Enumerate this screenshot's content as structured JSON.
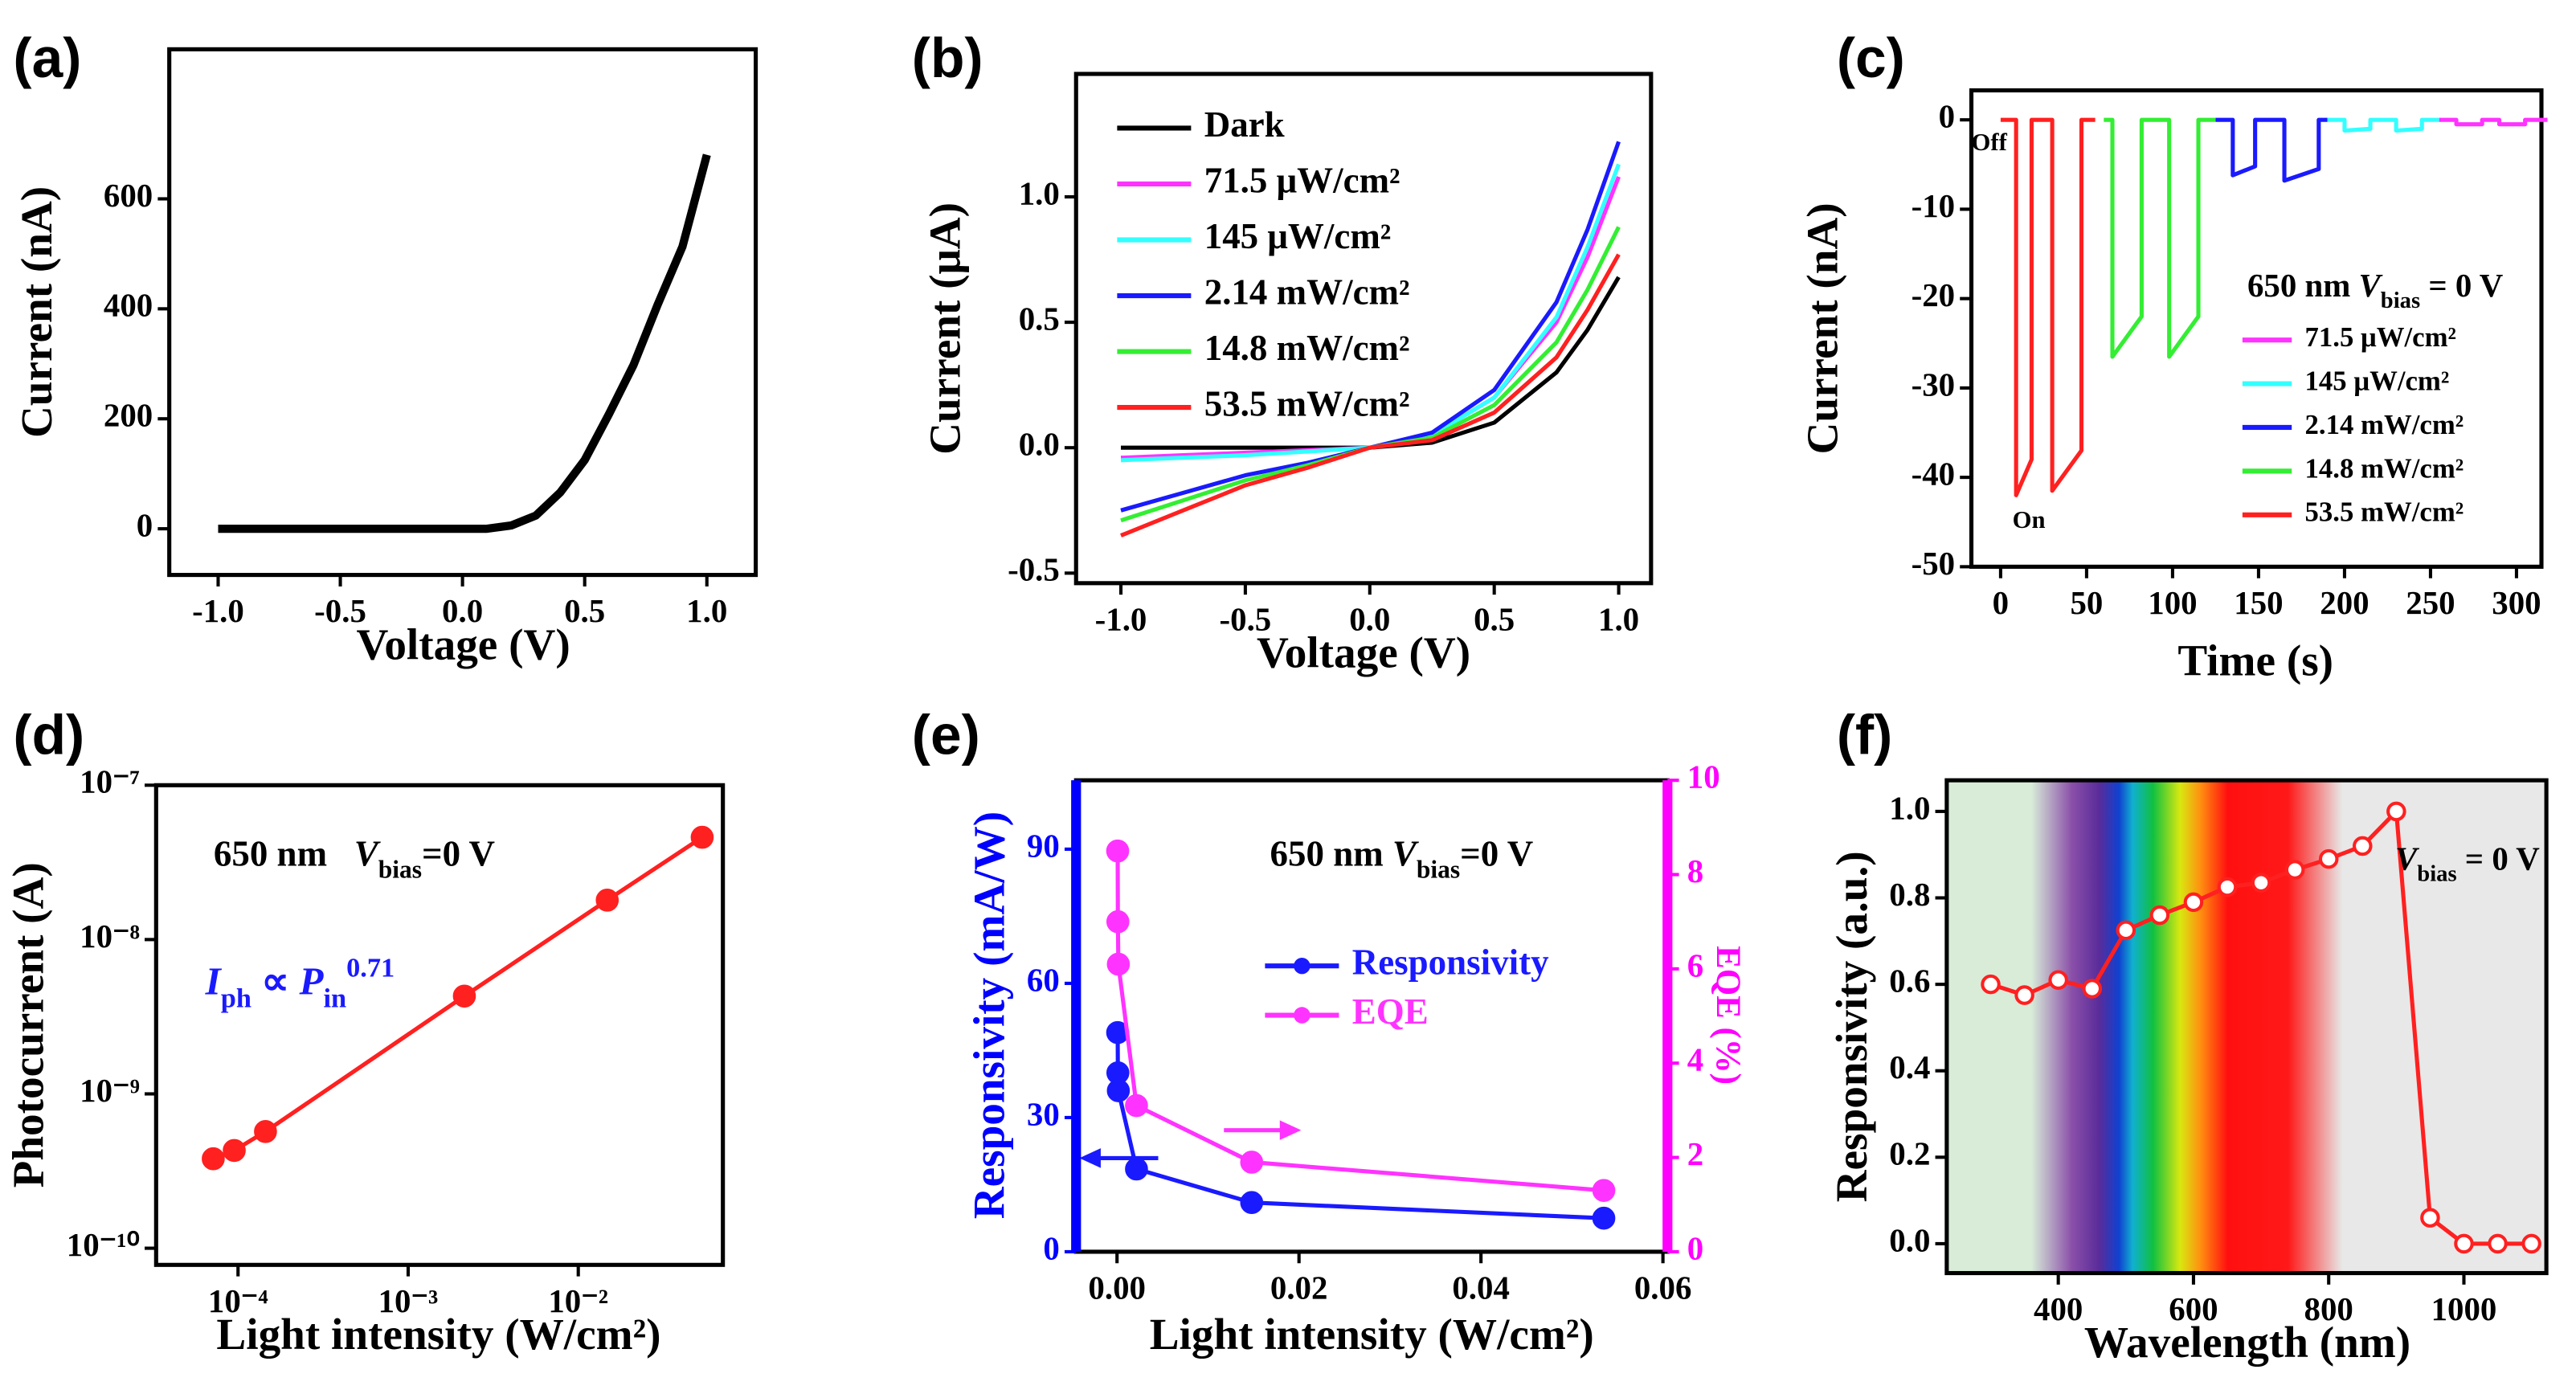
{
  "chart_data": [
    {
      "type": "line",
      "panel": "(a)",
      "xlabel": "Voltage (V)",
      "ylabel": "Current (nA)",
      "xlim": [
        -1.2,
        1.2
      ],
      "ylim": [
        -84,
        872
      ],
      "xticks": [
        {
          "value": -1,
          "label": "-1.0"
        },
        -0.5,
        {
          "value": 0,
          "label": "0.0"
        },
        0.5,
        {
          "value": 1,
          "label": "1.0"
        }
      ],
      "yticks": [
        0,
        200,
        400,
        600
      ],
      "x": [
        -1.0,
        -0.9,
        -0.8,
        -0.7,
        -0.6,
        -0.5,
        -0.4,
        -0.3,
        -0.2,
        -0.1,
        0.0,
        0.1,
        0.2,
        0.3,
        0.4,
        0.5,
        0.6,
        0.7,
        0.8,
        0.9,
        1.0
      ],
      "series": [
        {
          "color": "#000000",
          "values": [
            0,
            0,
            0,
            0,
            0,
            0,
            0,
            0,
            0,
            0,
            0,
            0,
            6,
            24,
            66,
            125,
            209,
            298,
            409,
            513,
            680
          ]
        }
      ]
    },
    {
      "type": "line",
      "panel": "(b)",
      "xlabel": "Voltage (V)",
      "ylabel": "Current (μA)",
      "xlim": [
        -1.18,
        1.13
      ],
      "ylim": [
        -0.54,
        1.49
      ],
      "xticks": [
        {
          "value": -1,
          "label": "-1.0"
        },
        -0.5,
        {
          "value": 0,
          "label": "0.0"
        },
        0.5,
        {
          "value": 1,
          "label": "1.0"
        }
      ],
      "yticks": [
        -0.5,
        {
          "value": 0,
          "label": "0.0"
        },
        0.5,
        {
          "value": 1,
          "label": "1.0"
        }
      ],
      "legend": "upper left",
      "x": [
        -1,
        -0.75,
        -0.5,
        -0.25,
        0,
        0.25,
        0.5,
        0.75,
        0.875,
        1
      ],
      "series": [
        {
          "name": "Dark",
          "color": "#000000",
          "values": [
            0,
            0,
            0,
            0,
            0,
            0.02,
            0.1,
            0.3,
            0.47,
            0.68
          ]
        },
        {
          "name": "71.5 μW/cm²",
          "color": "#ff33ff",
          "values": [
            -0.04,
            -0.03,
            -0.02,
            -0.01,
            0,
            0.05,
            0.2,
            0.5,
            0.76,
            1.08
          ]
        },
        {
          "name": "145 μW/cm²",
          "color": "#33ffff",
          "values": [
            -0.05,
            -0.04,
            -0.03,
            -0.015,
            0,
            0.05,
            0.2,
            0.52,
            0.8,
            1.13
          ]
        },
        {
          "name": "2.14 mW/cm²",
          "color": "#1a1aff",
          "values": [
            -0.25,
            -0.18,
            -0.11,
            -0.06,
            0,
            0.06,
            0.23,
            0.58,
            0.87,
            1.22
          ]
        },
        {
          "name": "14.8 mW/cm²",
          "color": "#33ee33",
          "values": [
            -0.29,
            -0.21,
            -0.13,
            -0.07,
            0,
            0.04,
            0.17,
            0.42,
            0.63,
            0.88
          ]
        },
        {
          "name": "53.5 mW/cm²",
          "color": "#ff2020",
          "values": [
            -0.35,
            -0.25,
            -0.15,
            -0.08,
            0,
            0.03,
            0.14,
            0.36,
            0.55,
            0.77
          ]
        }
      ]
    },
    {
      "type": "line",
      "panel": "(c)",
      "xlabel": "Time (s)",
      "ylabel": "Current (nA)",
      "xlim": [
        -17,
        314.5
      ],
      "ylim": [
        -50,
        3.3
      ],
      "xticks": [
        0,
        50,
        100,
        150,
        200,
        250,
        300
      ],
      "yticks": [
        -50,
        -40,
        -30,
        -20,
        -10,
        0
      ],
      "legend": "lower right",
      "annotations": [
        {
          "parts": [
            {
              "text": "650 nm "
            },
            {
              "text": "V",
              "style": "italic"
            },
            {
              "text": "bias",
              "style": "sub"
            },
            {
              "text": " = 0 V"
            }
          ]
        },
        {
          "parts": [
            {
              "text": "Off"
            }
          ]
        },
        {
          "parts": [
            {
              "text": "On"
            }
          ]
        }
      ],
      "series": [
        {
          "name": "71.5 μW/cm²",
          "color": "#ff33ff",
          "x": [
            255,
            265,
            265,
            280,
            280,
            290,
            290,
            305,
            305,
            318
          ],
          "values": [
            0,
            0,
            -0.5,
            -0.5,
            0,
            0,
            -0.5,
            -0.5,
            0,
            0
          ]
        },
        {
          "name": "145 μW/cm²",
          "color": "#33ffff",
          "x": [
            190,
            200,
            200,
            215,
            215,
            230,
            230,
            245,
            245,
            255
          ],
          "values": [
            0,
            0,
            -1.2,
            -1,
            0,
            0,
            -1.2,
            -1,
            0,
            0
          ]
        },
        {
          "name": "2.14 mW/cm²",
          "color": "#1a1aff",
          "x": [
            125,
            135,
            135,
            148,
            148,
            165,
            165,
            185,
            185,
            190
          ],
          "values": [
            0,
            0,
            -6.2,
            -5.2,
            0,
            0,
            -6.8,
            -5.5,
            0,
            0
          ]
        },
        {
          "name": "14.8 mW/cm²",
          "color": "#33ee33",
          "x": [
            60,
            65,
            65,
            82,
            82,
            98,
            98,
            115,
            115,
            125
          ],
          "values": [
            0,
            0,
            -26.5,
            -22,
            0,
            0,
            -26.5,
            -22,
            0,
            0
          ]
        },
        {
          "name": "53.5 mW/cm²",
          "color": "#ff2020",
          "x": [
            0,
            9,
            9,
            18,
            18,
            30,
            30,
            47,
            47,
            55
          ],
          "values": [
            0,
            0,
            -42,
            -38,
            0,
            0,
            -41.5,
            -37,
            0,
            0
          ]
        }
      ]
    },
    {
      "type": "line",
      "panel": "(d)",
      "xlabel": "Light intensity (W/cm²)",
      "ylabel": "Photocurrent (A)",
      "x_log": true,
      "y_log": true,
      "markers": true,
      "xlim": [
        3.3e-05,
        0.0708
      ],
      "ylim": [
        7.8e-11,
        1e-07
      ],
      "xticks": [
        {
          "value": 0.0001,
          "label": "10⁻⁴"
        },
        {
          "value": 0.001,
          "label": "10⁻³"
        },
        {
          "value": 0.01,
          "label": "10⁻²"
        }
      ],
      "yticks": [
        {
          "value": 1e-10,
          "label": "10⁻¹⁰"
        },
        {
          "value": 1e-09,
          "label": "10⁻⁹"
        },
        {
          "value": 1e-08,
          "label": "10⁻⁸"
        },
        {
          "value": 1e-07,
          "label": "10⁻⁷"
        }
      ],
      "annotations": [
        {
          "parts": [
            {
              "text": "650 nm   "
            },
            {
              "text": "V",
              "style": "italic"
            },
            {
              "text": "bias",
              "style": "sub"
            },
            {
              "text": "=0 V"
            }
          ]
        },
        {
          "color": "#1a1aff",
          "parts": [
            {
              "text": "I",
              "style": "italic"
            },
            {
              "text": "ph",
              "style": "sub"
            },
            {
              "text": " ∝ "
            },
            {
              "text": "P",
              "style": "italic"
            },
            {
              "text": "in",
              "style": "sub"
            },
            {
              "text": "0.71",
              "style": "sup"
            }
          ]
        }
      ],
      "x": [
        7.15e-05,
        9.5e-05,
        0.000145,
        0.00214,
        0.0148,
        0.0535
      ],
      "series": [
        {
          "color": "#ff2020",
          "values": [
            3.8e-10,
            4.3e-10,
            5.7e-10,
            4.3e-09,
            1.8e-08,
            4.6e-08
          ]
        }
      ]
    },
    {
      "type": "line",
      "panel": "(e)",
      "xlabel": "Light intensity (W/cm²)",
      "ylabel": "Responsivity (mA/W)",
      "y2label": "EQE (%)",
      "markers": true,
      "y_color": "#0000ff",
      "y2_color": "#ff00ff",
      "legend": "center",
      "xlim": [
        -0.0045,
        0.0605
      ],
      "ylim": [
        0,
        105.4
      ],
      "y2lim": [
        0,
        10
      ],
      "xticks": [
        {
          "value": 0,
          "label": "0.00"
        },
        {
          "value": 0.02,
          "label": "0.02"
        },
        {
          "value": 0.04,
          "label": "0.04"
        },
        {
          "value": 0.06,
          "label": "0.06"
        }
      ],
      "yticks": [
        0,
        30,
        60,
        90
      ],
      "y2ticks": [
        0,
        2,
        4,
        6,
        8,
        10
      ],
      "annotations": [
        {
          "parts": [
            {
              "text": "650 nm "
            },
            {
              "text": "V",
              "style": "italic"
            },
            {
              "text": "bias",
              "style": "sub"
            },
            {
              "text": "=0 V"
            }
          ]
        }
      ],
      "x": [
        7.15e-05,
        9.5e-05,
        0.000145,
        0.00214,
        0.0148,
        0.0535
      ],
      "series": [
        {
          "name": "Responsivity",
          "color": "#1a1aff",
          "values": [
            49,
            40,
            36,
            18.5,
            11,
            7.5
          ]
        },
        {
          "name": "EQE",
          "color": "#ff33ff",
          "axis": "y2",
          "values": [
            8.5,
            7.0,
            6.1,
            3.1,
            1.9,
            1.3
          ]
        }
      ]
    },
    {
      "type": "line",
      "panel": "(f)",
      "xlabel": "Wavelength (nm)",
      "ylabel": "Responsivity (a.u.)",
      "markers": true,
      "hollow_markers": true,
      "xlim": [
        235,
        1122
      ],
      "ylim": [
        -0.068,
        1.072
      ],
      "xticks": [
        400,
        600,
        800,
        1000
      ],
      "yticks": [
        {
          "value": 0,
          "label": "0.0"
        },
        0.2,
        0.4,
        0.6,
        0.8,
        {
          "value": 1,
          "label": "1.0"
        }
      ],
      "annotations": [
        {
          "parts": [
            {
              "text": "V",
              "style": "italic"
            },
            {
              "text": "bias",
              "style": "sub"
            },
            {
              "text": " = 0 V"
            }
          ]
        }
      ],
      "x": [
        300,
        350,
        400,
        450,
        500,
        550,
        600,
        650,
        700,
        750,
        800,
        850,
        900,
        950,
        1000,
        1050,
        1100
      ],
      "series": [
        {
          "color": "#ff2020",
          "values": [
            0.6,
            0.575,
            0.61,
            0.59,
            0.725,
            0.76,
            0.79,
            0.825,
            0.835,
            0.865,
            0.89,
            0.92,
            1.0,
            0.06,
            0.0,
            0.0,
            0.0
          ]
        }
      ]
    }
  ]
}
